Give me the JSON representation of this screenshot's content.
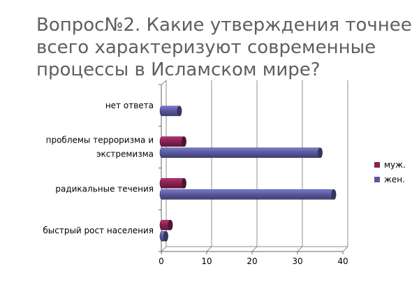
{
  "title": "Вопрос№2. Какие утверждения точнее всего характеризуют  современные процессы в Исламском мире?",
  "chart_data": {
    "type": "bar",
    "orientation": "horizontal",
    "style": "3d-cylinder",
    "categories": [
      [
        "быстрый рост населения"
      ],
      [
        "радикальные течения"
      ],
      [
        "проблемы терроризма и",
        "экстремизма"
      ],
      [
        "нет ответа"
      ]
    ],
    "series": [
      {
        "name": "муж.",
        "color": "#8b2252",
        "values": [
          2,
          5,
          5,
          0
        ]
      },
      {
        "name": "жен.",
        "color": "#5a5a9e",
        "values": [
          1,
          38,
          35,
          4
        ]
      }
    ],
    "xlim": [
      0,
      40
    ],
    "xticks": [
      0,
      10,
      20,
      30,
      40
    ],
    "grid": true,
    "legend_position": "right"
  }
}
